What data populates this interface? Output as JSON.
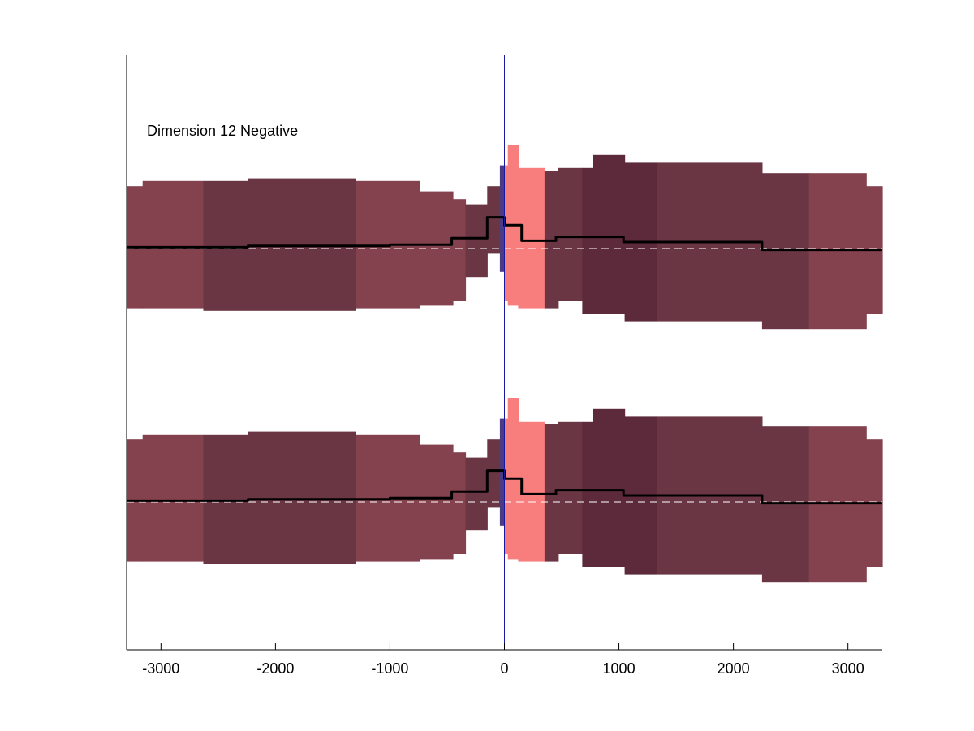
{
  "annotation": "Dimension 12 Negative",
  "chart_data": {
    "type": "area",
    "title": "",
    "xlabel": "",
    "ylabel": "",
    "xlim": [
      -3300,
      3300
    ],
    "xticks": [
      -3000,
      -2000,
      -1000,
      0,
      1000,
      2000,
      3000
    ],
    "xtick_labels": [
      "-3000",
      "-2000",
      "-1000",
      "0",
      "1000",
      "2000",
      "3000"
    ],
    "zero_line_x": 0,
    "colors": {
      "band_light": "#84414e",
      "band_mid": "#6a3644",
      "band_dark": "#5c2a3a",
      "band_highlight": "#f87e7e",
      "band_blue": "#4b3b84",
      "mean_line": "#000000",
      "baseline_dash": "#ffffff",
      "zero_line": "#1a1aa0",
      "axis": "#000000"
    },
    "segments": [
      {
        "x0": -3300,
        "x1": -3160,
        "shade": "band_light",
        "top": 0.48,
        "bottom": -0.46
      },
      {
        "x0": -3160,
        "x1": -2630,
        "shade": "band_light",
        "top": 0.52,
        "bottom": -0.46
      },
      {
        "x0": -2630,
        "x1": -2240,
        "shade": "band_mid",
        "top": 0.52,
        "bottom": -0.48
      },
      {
        "x0": -2240,
        "x1": -1300,
        "shade": "band_mid",
        "top": 0.54,
        "bottom": -0.48
      },
      {
        "x0": -1300,
        "x1": -740,
        "shade": "band_light",
        "top": 0.52,
        "bottom": -0.46
      },
      {
        "x0": -740,
        "x1": -450,
        "shade": "band_light",
        "top": 0.44,
        "bottom": -0.44
      },
      {
        "x0": -450,
        "x1": -340,
        "shade": "band_light",
        "top": 0.38,
        "bottom": -0.4
      },
      {
        "x0": -340,
        "x1": -150,
        "shade": "band_mid",
        "top": 0.34,
        "bottom": -0.22
      },
      {
        "x0": -150,
        "x1": -40,
        "shade": "band_mid",
        "top": 0.48,
        "bottom": -0.04
      },
      {
        "x0": -40,
        "x1": 0,
        "shade": "band_blue",
        "top": 0.64,
        "bottom": -0.18
      },
      {
        "x0": 0,
        "x1": 30,
        "shade": "band_highlight",
        "top": 0.64,
        "bottom": -0.4
      },
      {
        "x0": 30,
        "x1": 120,
        "shade": "band_highlight",
        "top": 0.8,
        "bottom": -0.44
      },
      {
        "x0": 120,
        "x1": 350,
        "shade": "band_highlight",
        "top": 0.62,
        "bottom": -0.46
      },
      {
        "x0": 350,
        "x1": 470,
        "shade": "band_mid",
        "top": 0.6,
        "bottom": -0.46
      },
      {
        "x0": 470,
        "x1": 680,
        "shade": "band_mid",
        "top": 0.62,
        "bottom": -0.4
      },
      {
        "x0": 680,
        "x1": 770,
        "shade": "band_dark",
        "top": 0.62,
        "bottom": -0.5
      },
      {
        "x0": 770,
        "x1": 1050,
        "shade": "band_dark",
        "top": 0.72,
        "bottom": -0.5
      },
      {
        "x0": 1050,
        "x1": 1330,
        "shade": "band_dark",
        "top": 0.66,
        "bottom": -0.56
      },
      {
        "x0": 1330,
        "x1": 2250,
        "shade": "band_mid",
        "top": 0.66,
        "bottom": -0.56
      },
      {
        "x0": 2250,
        "x1": 2660,
        "shade": "band_mid",
        "top": 0.58,
        "bottom": -0.62
      },
      {
        "x0": 2660,
        "x1": 3160,
        "shade": "band_light",
        "top": 0.58,
        "bottom": -0.62
      },
      {
        "x0": 3160,
        "x1": 3300,
        "shade": "band_light",
        "top": 0.48,
        "bottom": -0.5
      }
    ],
    "mean_steps": [
      {
        "x": -3300,
        "y": 0.01
      },
      {
        "x": -2240,
        "y": 0.02
      },
      {
        "x": -1000,
        "y": 0.03
      },
      {
        "x": -460,
        "y": 0.08
      },
      {
        "x": -150,
        "y": 0.24
      },
      {
        "x": 0,
        "y": 0.18
      },
      {
        "x": 150,
        "y": 0.06
      },
      {
        "x": 450,
        "y": 0.09
      },
      {
        "x": 1040,
        "y": 0.05
      },
      {
        "x": 2250,
        "y": -0.01
      },
      {
        "x": 3300,
        "y": -0.01
      }
    ],
    "panels": [
      "upper",
      "lower"
    ]
  }
}
